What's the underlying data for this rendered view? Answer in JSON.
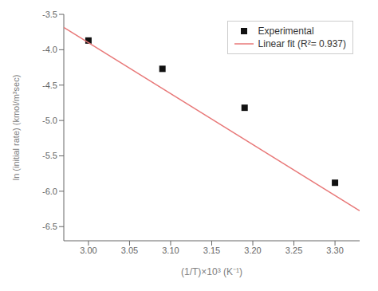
{
  "chart_data": {
    "type": "scatter",
    "xlabel": "(1/T)×10³ (K⁻¹)",
    "ylabel": "ln (initial rate) (kmol/m³sec)",
    "xlim": [
      2.97,
      3.33
    ],
    "ylim": [
      -6.7,
      -3.5
    ],
    "xticks": [
      {
        "value": 3.0,
        "label": "3.00"
      },
      3.05,
      {
        "value": 3.1,
        "label": "3.10"
      },
      3.15,
      {
        "value": 3.2,
        "label": "3.20"
      },
      3.25,
      {
        "value": 3.3,
        "label": "3.30"
      }
    ],
    "yticks": [
      -6.5,
      {
        "value": -6.0,
        "label": "-6.0"
      },
      -5.5,
      {
        "value": -5.0,
        "label": "-5.0"
      },
      -4.5,
      {
        "value": -4.0,
        "label": "-4.0"
      },
      -3.5
    ],
    "grid": false,
    "legend": "upper right",
    "series": [
      {
        "name": "Experimental",
        "type": "scatter",
        "marker": "square",
        "color": "#111111",
        "x": [
          3.0,
          3.09,
          3.19,
          3.3
        ],
        "values": [
          -3.87,
          -4.27,
          -4.82,
          -5.88
        ]
      },
      {
        "name": "Linear fit (R²= 0.937)",
        "type": "line",
        "color": "#e87878",
        "x": [
          2.97,
          3.33
        ],
        "values": [
          -3.684,
          -6.276
        ]
      }
    ]
  }
}
